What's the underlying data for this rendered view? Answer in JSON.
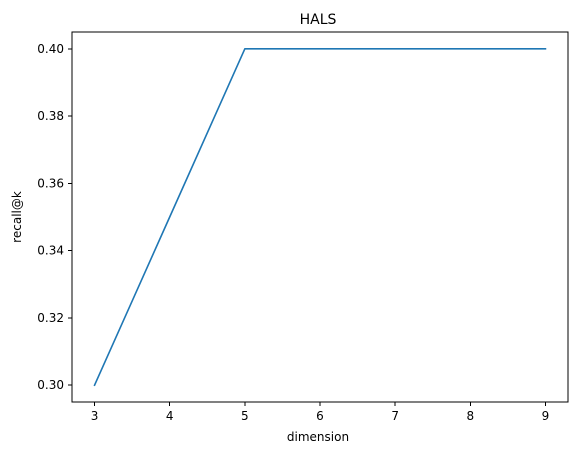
{
  "chart_data": {
    "type": "line",
    "title": "HALS",
    "xlabel": "dimension",
    "ylabel": "recall@k",
    "x": [
      3,
      4,
      5,
      6,
      7,
      8,
      9
    ],
    "series": [
      {
        "values": [
          0.3,
          0.35,
          0.4,
          0.4,
          0.4,
          0.4,
          0.4
        ],
        "color": "#1f77b4"
      }
    ],
    "xlim": [
      2.7,
      9.3
    ],
    "ylim": [
      0.295,
      0.405
    ],
    "xticks": [
      3,
      4,
      5,
      6,
      7,
      8,
      9
    ],
    "yticks": [
      0.3,
      0.32,
      0.34,
      0.36,
      0.38,
      0.4
    ],
    "ytick_labels": [
      "0.30",
      "0.32",
      "0.34",
      "0.36",
      "0.38",
      "0.40"
    ],
    "grid": false,
    "legend": "none"
  }
}
